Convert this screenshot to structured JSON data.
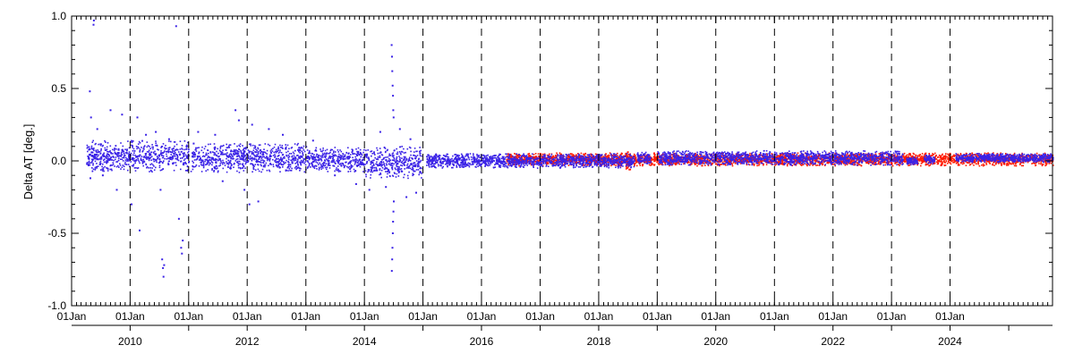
{
  "chart_data": {
    "type": "scatter",
    "title": "",
    "xlabel": "",
    "ylabel": "Delta AT [deg.]",
    "ylim": [
      -1.0,
      1.0
    ],
    "xlim": [
      "2009-01-01",
      "2025-10-01"
    ],
    "y_ticks": [
      -1.0,
      -0.5,
      0.0,
      0.5,
      1.0
    ],
    "y_tick_labels": [
      "-1.0",
      "-0.5",
      "0.0",
      "0.5",
      "1.0"
    ],
    "x_ticks": [
      "2009-01-01",
      "2010-01-01",
      "2011-01-01",
      "2012-01-01",
      "2013-01-01",
      "2014-01-01",
      "2015-01-01",
      "2016-01-01",
      "2017-01-01",
      "2018-01-01",
      "2019-01-01",
      "2020-01-01",
      "2021-01-01",
      "2022-01-01",
      "2023-01-01",
      "2024-01-01"
    ],
    "x_tick_label": "01Jan",
    "year_ticks": [
      "2010-01-01",
      "2011-01-01",
      "2012-01-01",
      "2013-01-01",
      "2014-01-01",
      "2015-01-01",
      "2016-01-01",
      "2017-01-01",
      "2018-01-01",
      "2019-01-01",
      "2020-01-01",
      "2021-01-01",
      "2022-01-01",
      "2023-01-01",
      "2024-01-01",
      "2025-01-01"
    ],
    "year_labels": [
      {
        "label": "2010",
        "date": "2010-01-01"
      },
      {
        "label": "2012",
        "date": "2012-01-01"
      },
      {
        "label": "2014",
        "date": "2014-01-01"
      },
      {
        "label": "2016",
        "date": "2016-01-01"
      },
      {
        "label": "2018",
        "date": "2018-01-01"
      },
      {
        "label": "2020",
        "date": "2020-01-01"
      },
      {
        "label": "2022",
        "date": "2022-01-01"
      },
      {
        "label": "2024",
        "date": "2024-01-01"
      }
    ],
    "year_gridlines": [
      "2010-01-01",
      "2011-01-01",
      "2012-01-01",
      "2013-01-01",
      "2014-01-01",
      "2015-01-01",
      "2016-01-01",
      "2017-01-01",
      "2018-01-01",
      "2019-01-01",
      "2020-01-01",
      "2021-01-01",
      "2022-01-01",
      "2023-01-01",
      "2024-01-01"
    ],
    "gridline_style": "dashed",
    "grid": false,
    "colors": {
      "series_blue": "#3a22e6",
      "series_red": "#ff1a00",
      "axis": "#000000",
      "gridline": "#000000"
    },
    "series": [
      {
        "color": "#ff1a00",
        "segments": [
          {
            "start": "2016-06-01",
            "end": "2025-10-01",
            "center": 0.01,
            "spread": 0.045
          },
          {
            "start": "2018-06-15",
            "end": "2018-07-20",
            "center": 0.0,
            "spread": 0.06
          }
        ],
        "points": [
          {
            "x": "2018-06-20",
            "y": 0.05
          },
          {
            "x": "2018-06-22",
            "y": -0.04
          },
          {
            "x": "2018-06-25",
            "y": 0.03
          },
          {
            "x": "2018-06-28",
            "y": -0.05
          },
          {
            "x": "2018-07-02",
            "y": 0.06
          },
          {
            "x": "2018-07-05",
            "y": -0.03
          },
          {
            "x": "2018-07-08",
            "y": 0.02
          },
          {
            "x": "2018-07-12",
            "y": -0.06
          },
          {
            "x": "2018-07-15",
            "y": 0.04
          },
          {
            "x": "2018-07-18",
            "y": 0.0
          }
        ]
      },
      {
        "color": "#3a22e6",
        "segments": [
          {
            "start": "2009-04-01",
            "end": "2010-12-31",
            "center": 0.03,
            "spread": 0.11
          },
          {
            "start": "2011-01-10",
            "end": "2011-12-31",
            "center": 0.02,
            "spread": 0.1
          },
          {
            "start": "2012-01-01",
            "end": "2012-12-31",
            "center": 0.02,
            "spread": 0.1
          },
          {
            "start": "2013-01-01",
            "end": "2013-12-31",
            "center": 0.01,
            "spread": 0.085
          },
          {
            "start": "2014-01-01",
            "end": "2014-12-20",
            "center": -0.01,
            "spread": 0.11
          },
          {
            "start": "2015-01-20",
            "end": "2018-08-10",
            "center": 0.0,
            "spread": 0.05
          },
          {
            "start": "2018-08-25",
            "end": "2018-11-20",
            "center": 0.02,
            "spread": 0.04
          },
          {
            "start": "2019-01-01",
            "end": "2023-03-10",
            "center": 0.02,
            "spread": 0.05
          },
          {
            "start": "2023-04-01",
            "end": "2023-06-10",
            "center": 0.0,
            "spread": 0.03
          },
          {
            "start": "2023-07-20",
            "end": "2023-09-25",
            "center": 0.01,
            "spread": 0.03
          },
          {
            "start": "2024-02-01",
            "end": "2025-10-01",
            "center": 0.02,
            "spread": 0.03
          }
        ],
        "points": [
          {
            "x": "2009-05-20",
            "y": 0.97
          },
          {
            "x": "2009-05-18",
            "y": 0.94
          },
          {
            "x": "2009-04-25",
            "y": 0.48
          },
          {
            "x": "2009-05-02",
            "y": 0.3
          },
          {
            "x": "2009-04-28",
            "y": -0.12
          },
          {
            "x": "2009-06-10",
            "y": 0.22
          },
          {
            "x": "2009-07-15",
            "y": -0.1
          },
          {
            "x": "2009-09-01",
            "y": 0.35
          },
          {
            "x": "2009-10-10",
            "y": -0.2
          },
          {
            "x": "2009-11-12",
            "y": 0.32
          },
          {
            "x": "2010-01-10",
            "y": -0.3
          },
          {
            "x": "2010-02-15",
            "y": 0.3
          },
          {
            "x": "2010-03-01",
            "y": -0.48
          },
          {
            "x": "2010-04-10",
            "y": 0.18
          },
          {
            "x": "2010-06-10",
            "y": 0.2
          },
          {
            "x": "2010-07-10",
            "y": -0.2
          },
          {
            "x": "2010-07-20",
            "y": -0.68
          },
          {
            "x": "2010-07-25",
            "y": -0.74
          },
          {
            "x": "2010-07-28",
            "y": -0.8
          },
          {
            "x": "2010-08-01",
            "y": -0.72
          },
          {
            "x": "2010-09-01",
            "y": 0.15
          },
          {
            "x": "2010-10-15",
            "y": 0.93
          },
          {
            "x": "2010-11-01",
            "y": -0.4
          },
          {
            "x": "2010-11-15",
            "y": -0.6
          },
          {
            "x": "2010-11-20",
            "y": -0.64
          },
          {
            "x": "2010-11-25",
            "y": -0.55
          },
          {
            "x": "2011-02-01",
            "y": 0.12
          },
          {
            "x": "2011-03-01",
            "y": 0.2
          },
          {
            "x": "2011-06-15",
            "y": 0.18
          },
          {
            "x": "2011-08-01",
            "y": -0.14
          },
          {
            "x": "2011-10-20",
            "y": 0.35
          },
          {
            "x": "2011-11-10",
            "y": 0.28
          },
          {
            "x": "2011-12-15",
            "y": -0.2
          },
          {
            "x": "2012-01-15",
            "y": -0.3
          },
          {
            "x": "2012-02-01",
            "y": 0.25
          },
          {
            "x": "2012-03-10",
            "y": -0.28
          },
          {
            "x": "2012-05-15",
            "y": 0.22
          },
          {
            "x": "2012-08-10",
            "y": 0.18
          },
          {
            "x": "2013-02-15",
            "y": 0.14
          },
          {
            "x": "2013-07-01",
            "y": -0.1
          },
          {
            "x": "2013-11-10",
            "y": -0.16
          },
          {
            "x": "2014-02-01",
            "y": -0.2
          },
          {
            "x": "2014-04-10",
            "y": 0.2
          },
          {
            "x": "2014-05-15",
            "y": -0.18
          },
          {
            "x": "2014-06-20",
            "y": 0.8
          },
          {
            "x": "2014-06-22",
            "y": 0.72
          },
          {
            "x": "2014-06-24",
            "y": 0.62
          },
          {
            "x": "2014-06-26",
            "y": 0.52
          },
          {
            "x": "2014-06-28",
            "y": 0.45
          },
          {
            "x": "2014-06-30",
            "y": 0.35
          },
          {
            "x": "2014-07-02",
            "y": 0.3
          },
          {
            "x": "2014-06-21",
            "y": -0.76
          },
          {
            "x": "2014-06-23",
            "y": -0.68
          },
          {
            "x": "2014-06-25",
            "y": -0.6
          },
          {
            "x": "2014-06-27",
            "y": -0.5
          },
          {
            "x": "2014-06-29",
            "y": -0.42
          },
          {
            "x": "2014-07-01",
            "y": -0.35
          },
          {
            "x": "2014-07-03",
            "y": -0.28
          },
          {
            "x": "2014-08-10",
            "y": 0.22
          },
          {
            "x": "2014-09-20",
            "y": -0.25
          },
          {
            "x": "2014-10-15",
            "y": 0.15
          },
          {
            "x": "2014-11-20",
            "y": -0.22
          }
        ]
      }
    ]
  }
}
